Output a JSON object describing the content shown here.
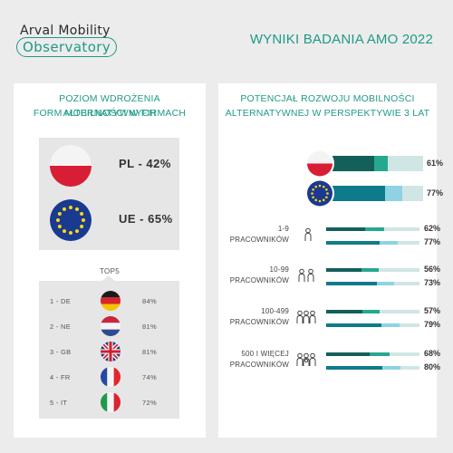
{
  "logo": {
    "line1": "Arval Mobility",
    "line2": "Observatory"
  },
  "header": {
    "title": "WYNIKI BADANIA AMO 2022"
  },
  "left_panel": {
    "title_line1": "POZIOM WDROŻENIA ALTERNATYWNYCH",
    "title_line2": "FORM MOBILNOŚCI W FIRMACH",
    "pl_label": "PL - 42%",
    "ue_label": "UE - 65%",
    "top5_title": "TOP5",
    "top5": [
      {
        "rank": "1 - DE",
        "value": "84%",
        "flag": "germany-flag-icon"
      },
      {
        "rank": "2 - NE",
        "value": "81%",
        "flag": "netherlands-flag-icon"
      },
      {
        "rank": "3 - GB",
        "value": "81%",
        "flag": "uk-flag-icon"
      },
      {
        "rank": "4 - FR",
        "value": "74%",
        "flag": "france-flag-icon"
      },
      {
        "rank": "5 - IT",
        "value": "72%",
        "flag": "italy-flag-icon"
      }
    ]
  },
  "right_panel": {
    "title_line1": "POTENCJAŁ ROZWOJU MOBILNOŚCI",
    "title_line2": "ALTERNATYWNEJ W PERSPEKTYWIE 3 LAT"
  },
  "colors": {
    "accent": "#1f9a86",
    "dark_teal": "#135f5a",
    "mid_teal": "#0d7b8c",
    "light_teal": "#8ed2e4",
    "bright_teal": "#26a88f"
  },
  "chart_data": {
    "type": "bar",
    "title": "POTENCJAŁ ROZWOJU MOBILNOŚCI ALTERNATYWNEJ W PERSPEKTYWIE 3 LAT",
    "top": [
      {
        "label": "PL",
        "value": 61,
        "display": "61%",
        "icon": "poland-flag-icon"
      },
      {
        "label": "UE",
        "value": 77,
        "display": "77%",
        "icon": "eu-flag-icon"
      }
    ],
    "groups": [
      {
        "line1": "1-9",
        "line2": "PRACOWNIKÓW",
        "icon": "single-person-icon",
        "pl": {
          "value": 62,
          "display": "62%"
        },
        "ue": {
          "value": 77,
          "display": "77%"
        }
      },
      {
        "line1": "10-99",
        "line2": "PRACOWNIKÓW",
        "icon": "small-group-icon",
        "pl": {
          "value": 56,
          "display": "56%"
        },
        "ue": {
          "value": 73,
          "display": "73%"
        }
      },
      {
        "line1": "100-499",
        "line2": "PRACOWNIKÓW",
        "icon": "medium-group-icon",
        "pl": {
          "value": 57,
          "display": "57%"
        },
        "ue": {
          "value": 79,
          "display": "79%"
        }
      },
      {
        "line1": "500 I WIĘCEJ",
        "line2": "PRACOWNIKÓW",
        "icon": "large-group-icon",
        "pl": {
          "value": 68,
          "display": "68%"
        },
        "ue": {
          "value": 80,
          "display": "80%"
        }
      }
    ]
  }
}
